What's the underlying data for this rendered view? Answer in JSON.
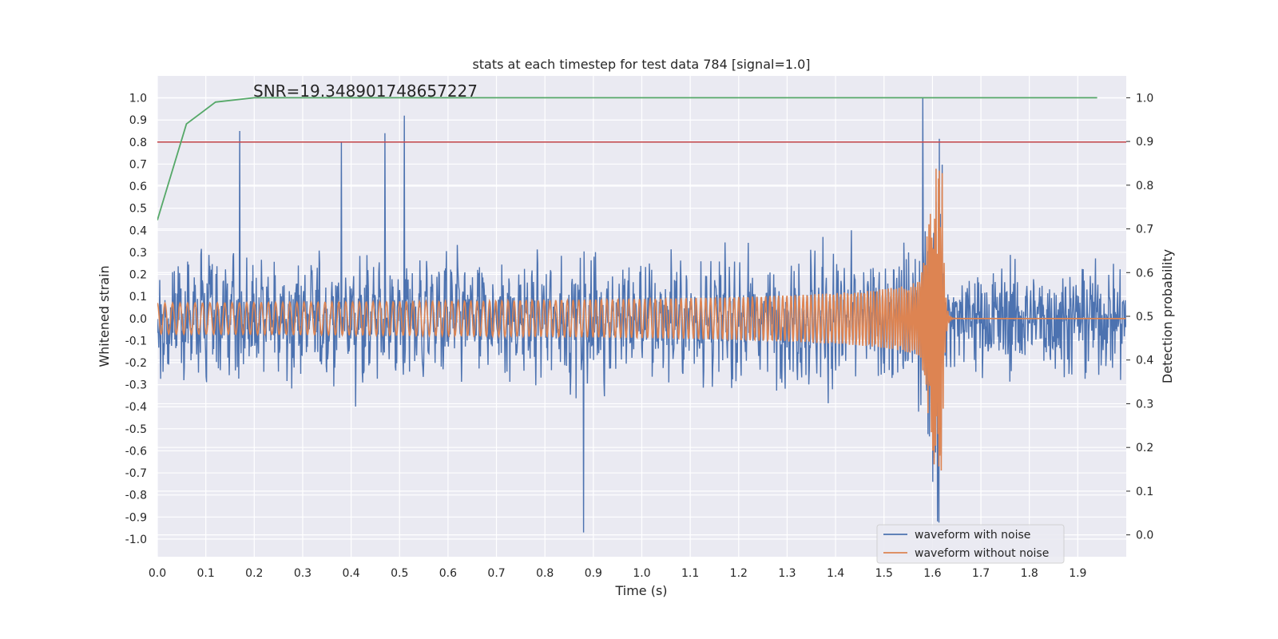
{
  "chart_data": {
    "type": "line",
    "title": "stats at each timestep for test data 784 [signal=1.0]",
    "annotation": "SNR=19.348901748657227",
    "xlabel": "Time (s)",
    "ylabel": "Whitened strain",
    "ylabel_right": "Detection probability",
    "xlim": [
      0.0,
      2.0
    ],
    "ylim": [
      -1.08,
      1.1
    ],
    "ylim_right": [
      -0.05,
      1.05
    ],
    "x_ticks": [
      "0.0",
      "0.1",
      "0.2",
      "0.3",
      "0.4",
      "0.5",
      "0.6",
      "0.7",
      "0.8",
      "0.9",
      "1.0",
      "1.1",
      "1.2",
      "1.3",
      "1.4",
      "1.5",
      "1.6",
      "1.7",
      "1.8",
      "1.9"
    ],
    "y_ticks": [
      "1.0",
      "0.9",
      "0.8",
      "0.7",
      "0.6",
      "0.5",
      "0.4",
      "0.3",
      "0.2",
      "0.1",
      "0.0",
      "-0.1",
      "-0.2",
      "-0.3",
      "-0.4",
      "-0.5",
      "-0.6",
      "-0.7",
      "-0.8",
      "-0.9",
      "-1.0"
    ],
    "y_ticks_right": [
      "1.0",
      "0.9",
      "0.8",
      "0.7",
      "0.6",
      "0.5",
      "0.4",
      "0.3",
      "0.2",
      "0.1",
      "0.0"
    ],
    "grid": true,
    "legend_position": "bottom-right",
    "colors": {
      "noisy": "#4c72b0",
      "clean": "#dd8452",
      "probability": "#55a868",
      "threshold": "#c44e52",
      "background": "#eaeaf2",
      "grid": "#ffffff"
    },
    "series": [
      {
        "name": "waveform with noise",
        "description": "whitened strain, noise-dominated, amplitude roughly within ±0.6 with spikes to ±1.0",
        "peaks": [
          {
            "x": 0.17,
            "y": 0.85
          },
          {
            "x": 0.38,
            "y": 0.8
          },
          {
            "x": 0.47,
            "y": 0.84
          },
          {
            "x": 0.51,
            "y": 0.92
          },
          {
            "x": 0.88,
            "y": -0.97
          },
          {
            "x": 1.58,
            "y": 1.0
          },
          {
            "x": 1.61,
            "y": 0.84
          },
          {
            "x": 1.61,
            "y": -0.92
          }
        ]
      },
      {
        "name": "waveform without noise",
        "description": "chirp signal, amplitude ~0.07 at start rising to ~0.7 at merger near 1.62 s, then ringdown to zero",
        "merger_time": 1.62,
        "start_amplitude": 0.07,
        "peak_amplitude": 0.69
      },
      {
        "name": "detection probability",
        "axis": "right",
        "x": [
          0.0,
          0.06,
          0.12,
          0.2,
          0.5,
          1.0,
          1.5,
          1.94
        ],
        "y": [
          0.72,
          0.94,
          0.99,
          1.0,
          1.0,
          1.0,
          1.0,
          1.0
        ]
      },
      {
        "name": "threshold",
        "axis": "left",
        "y": 0.8
      }
    ],
    "legend": [
      "waveform with noise",
      "waveform without noise"
    ]
  }
}
